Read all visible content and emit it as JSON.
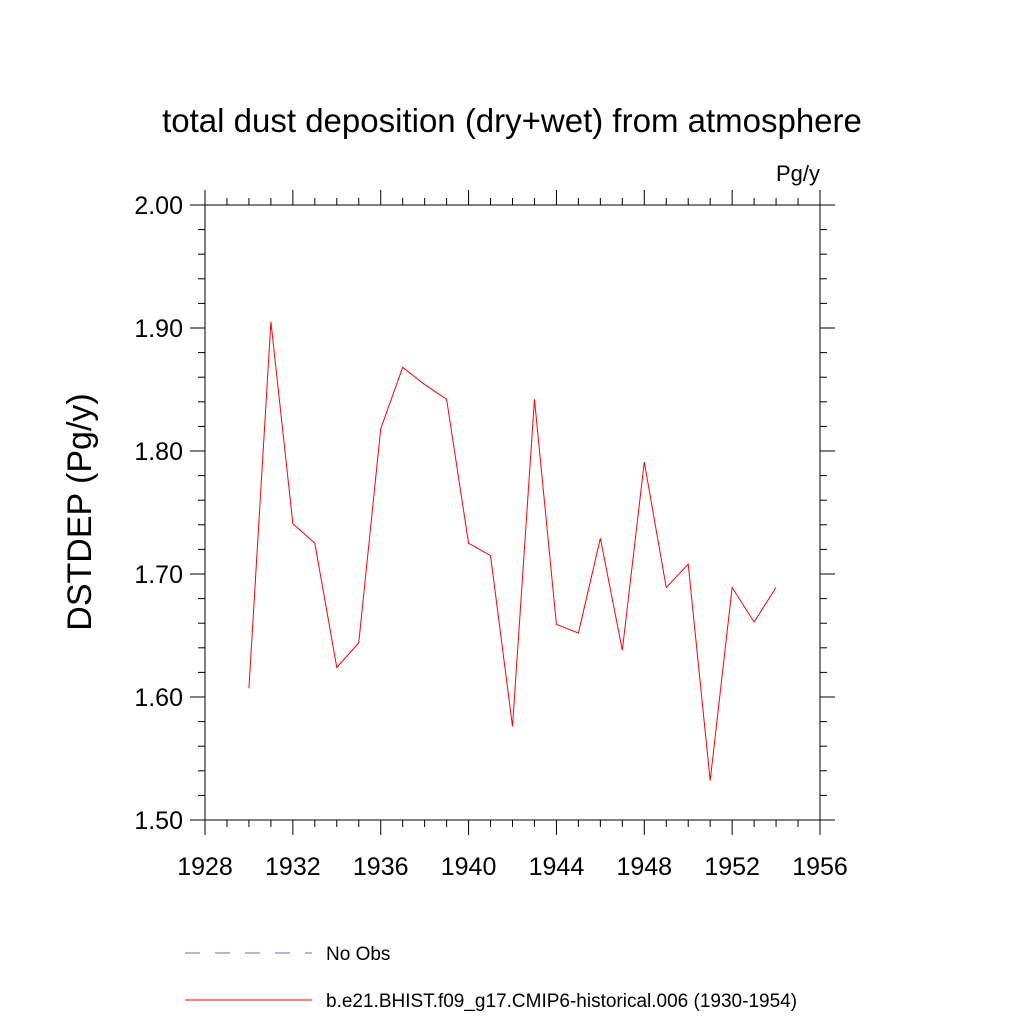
{
  "chart_data": {
    "type": "line",
    "title": "total dust deposition (dry+wet) from atmosphere",
    "units": "Pg/y",
    "ylabel": "DSTDEP  (Pg/y)",
    "xlabel": "",
    "xlim": [
      1928,
      1956
    ],
    "ylim": [
      1.5,
      2.0
    ],
    "xticks": [
      1928,
      1932,
      1936,
      1940,
      1944,
      1948,
      1952,
      1956
    ],
    "yticks": [
      1.5,
      1.6,
      1.7,
      1.8,
      1.9,
      2.0
    ],
    "ytick_labels": [
      "1.50",
      "1.60",
      "1.70",
      "1.80",
      "1.90",
      "2.00"
    ],
    "grid": false,
    "legend_position": "bottom",
    "series": [
      {
        "name": "No Obs",
        "color": "#6a6ab8",
        "style": "dashed",
        "x": [],
        "y": []
      },
      {
        "name": "b.e21.BHIST.f09_g17.CMIP6-historical.006 (1930-1954)",
        "color": "#ff0000",
        "style": "solid",
        "x": [
          1930,
          1931,
          1932,
          1933,
          1934,
          1935,
          1936,
          1937,
          1938,
          1939,
          1940,
          1941,
          1942,
          1943,
          1944,
          1945,
          1946,
          1947,
          1948,
          1949,
          1950,
          1951,
          1952,
          1953,
          1954
        ],
        "y": [
          1.607,
          1.905,
          1.741,
          1.725,
          1.624,
          1.644,
          1.818,
          1.868,
          1.854,
          1.842,
          1.725,
          1.715,
          1.576,
          1.842,
          1.659,
          1.652,
          1.729,
          1.638,
          1.791,
          1.689,
          1.708,
          1.532,
          1.689,
          1.661,
          1.689
        ]
      }
    ]
  }
}
